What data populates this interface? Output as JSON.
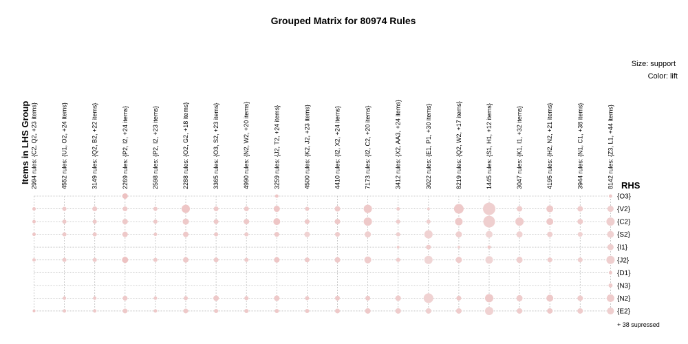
{
  "chart_data": {
    "type": "grouped-matrix",
    "title": "Grouped Matrix for 80974 Rules",
    "xlabel": "Items in LHS Group",
    "ylabel": "RHS",
    "legend": {
      "size": "Size: support",
      "color": "Color: lift",
      "placement": "top-right"
    },
    "suppressed_note": "+ 38 supressed",
    "lhs_groups": [
      "2994 rules: {C2, Q2, +23 items}",
      "4552 rules: {U1, O2, +24 items}",
      "3149 rules: {Q2, B2, +22 items}",
      "2269 rules: {P2, I2, +24 items}",
      "2598 rules: {P2, I2, +23 items}",
      "2288 rules: {O2, G2, +18 items}",
      "3365 rules: {O3, S2, +23 items}",
      "4990 rules: {N2, W2, +20 items}",
      "3259 rules: {J2, T2, +24 items}",
      "4500 rules: {K2, J2, +23 items}",
      "4410 rules: {I2, X2, +24 items}",
      "7173 rules: {I2, C2, +20 items}",
      "3412 rules: {X2, AA3, +24 items}",
      "3022 rules: {E1, P1, +30 items}",
      "8219 rules: {Q2, W2, +17 items}",
      "1445 rules: {S1, H1, +12 items}",
      "3047 rules: {K1, I1, +32 items}",
      "4195 rules: {H2, N2, +21 items}",
      "3944 rules: {N1, C1, +38 items}",
      "8142 rules: {Z3, L1, +44 items}"
    ],
    "rhs_items": [
      "{O3}",
      "{V2}",
      "{C2}",
      "{S2}",
      "{I1}",
      "{J2}",
      "{D1}",
      "{N3}",
      "{N2}",
      "{E2}"
    ],
    "support": [
      [
        0,
        0,
        0,
        4,
        0,
        0,
        0,
        0,
        2.5,
        0,
        0,
        0,
        0,
        0,
        0,
        0,
        0,
        0,
        0,
        2.5
      ],
      [
        2.5,
        3,
        3.5,
        3.5,
        3,
        6,
        3.5,
        3.5,
        4.5,
        3,
        4,
        6,
        2.5,
        2,
        7,
        9,
        4,
        5,
        4,
        4.5
      ],
      [
        2.5,
        3,
        3,
        4,
        3,
        4.5,
        3.5,
        4,
        5,
        3.5,
        4,
        6,
        3,
        3,
        5.5,
        8.5,
        6,
        5,
        4,
        6
      ],
      [
        2.5,
        3,
        3,
        4,
        2.5,
        4,
        3,
        3,
        3.5,
        4,
        3.5,
        4.5,
        3,
        6,
        4.5,
        5,
        4.5,
        4,
        3.5,
        5
      ],
      [
        0,
        0,
        0,
        0,
        0,
        0,
        0,
        0,
        0,
        0,
        0,
        0,
        2,
        3.5,
        2,
        2.5,
        0,
        0,
        0,
        4.5
      ],
      [
        2.5,
        3,
        3,
        4.5,
        3,
        4,
        3.5,
        3,
        4,
        3.5,
        4,
        5,
        3,
        6,
        4.5,
        5.5,
        4.5,
        3.5,
        3.5,
        6
      ],
      [
        0,
        0,
        0,
        0,
        0,
        0,
        0,
        0,
        0,
        0,
        0,
        0,
        0,
        0,
        0,
        0,
        0,
        0,
        0,
        2.5
      ],
      [
        0,
        0,
        0,
        0,
        0,
        0,
        0,
        0,
        0,
        0,
        0,
        0,
        0,
        0,
        0,
        0,
        0,
        0,
        0,
        3
      ],
      [
        0,
        2.5,
        2.5,
        3.5,
        2.5,
        3,
        4,
        3,
        4,
        3,
        3.5,
        3.5,
        4,
        7,
        3.5,
        6,
        4.5,
        5,
        4,
        5.5
      ],
      [
        2,
        2.5,
        2.5,
        3.5,
        2.5,
        3.5,
        3,
        3,
        3,
        3,
        3.5,
        4,
        4,
        4,
        4,
        6,
        4,
        4,
        4,
        5
      ]
    ],
    "lift": [
      [
        0,
        0,
        0,
        0.55,
        0,
        0,
        0,
        0,
        0.5,
        0,
        0,
        0,
        0,
        0,
        0,
        0,
        0,
        0,
        0,
        0.45
      ],
      [
        0.5,
        0.45,
        0.45,
        0.45,
        0.45,
        0.5,
        0.45,
        0.45,
        0.5,
        0.45,
        0.45,
        0.45,
        0.4,
        0.35,
        0.45,
        0.35,
        0.4,
        0.45,
        0.4,
        0.35
      ],
      [
        0.5,
        0.45,
        0.45,
        0.45,
        0.45,
        0.45,
        0.45,
        0.45,
        0.5,
        0.45,
        0.45,
        0.45,
        0.4,
        0.35,
        0.45,
        0.35,
        0.4,
        0.45,
        0.4,
        0.35
      ],
      [
        0.5,
        0.45,
        0.45,
        0.45,
        0.45,
        0.45,
        0.45,
        0.4,
        0.45,
        0.3,
        0.4,
        0.35,
        0.35,
        0.3,
        0.35,
        0.25,
        0.3,
        0.35,
        0.3,
        0.3
      ],
      [
        0,
        0,
        0,
        0,
        0,
        0,
        0,
        0,
        0,
        0,
        0,
        0,
        0.4,
        0.4,
        0.35,
        0.45,
        0,
        0,
        0,
        0.35
      ],
      [
        0.45,
        0.45,
        0.45,
        0.55,
        0.45,
        0.45,
        0.45,
        0.45,
        0.5,
        0.45,
        0.45,
        0.4,
        0.4,
        0.25,
        0.4,
        0.25,
        0.35,
        0.4,
        0.35,
        0.35
      ],
      [
        0,
        0,
        0,
        0,
        0,
        0,
        0,
        0,
        0,
        0,
        0,
        0,
        0,
        0,
        0,
        0,
        0,
        0,
        0,
        0.45
      ],
      [
        0,
        0,
        0,
        0,
        0,
        0,
        0,
        0,
        0,
        0,
        0,
        0,
        0,
        0,
        0,
        0,
        0,
        0,
        0,
        0.4
      ],
      [
        0,
        0.45,
        0.45,
        0.45,
        0.45,
        0.45,
        0.45,
        0.45,
        0.45,
        0.45,
        0.45,
        0.45,
        0.4,
        0.3,
        0.45,
        0.45,
        0.4,
        0.45,
        0.4,
        0.4
      ],
      [
        0.55,
        0.45,
        0.45,
        0.45,
        0.45,
        0.45,
        0.45,
        0.45,
        0.45,
        0.45,
        0.45,
        0.45,
        0.4,
        0.35,
        0.4,
        0.3,
        0.4,
        0.45,
        0.4,
        0.35
      ]
    ],
    "colors": {
      "point_high": "#e8a7a7",
      "point_low": "#f3e4e4",
      "grid": "#bdbdbd"
    }
  }
}
